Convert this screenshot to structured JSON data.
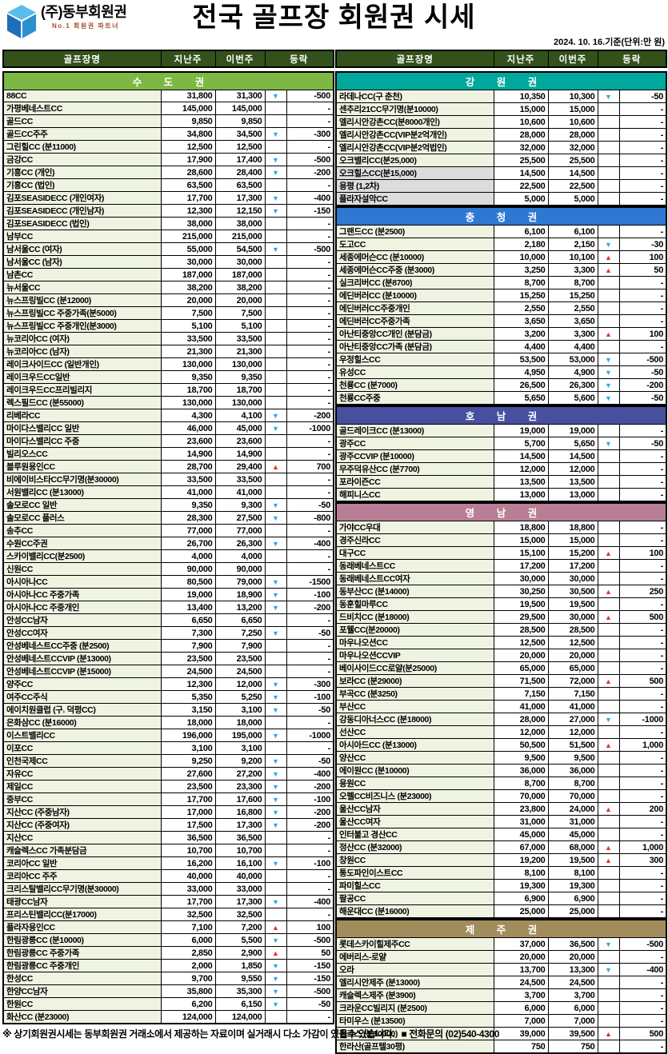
{
  "header": {
    "company": "(주)동부회원권",
    "tagline": "No.1 회원권 파트너",
    "logo_icon": "blue-cube-logo",
    "title": "전국 골프장 회원권 시세",
    "date_note": "2024. 10. 16.기준(단위:만 원)"
  },
  "columns_header": {
    "name": "골프장명",
    "last_week": "지난주",
    "this_week": "이번주",
    "change": "등락"
  },
  "colors": {
    "table_header_bg": "#33511a",
    "name_cell_bg": "#eef3e2",
    "gray_cell_bg": "#dcdcdc",
    "up_arrow": "#e63128",
    "down_arrow": "#29abe2"
  },
  "legend": {
    "up_symbol": "▲",
    "down_symbol": "▼"
  },
  "left_sections": [
    {
      "title": "수 도 권",
      "color": "#7cb843",
      "rows": [
        [
          "88CC",
          "31,800",
          "31,300",
          "down",
          "-500"
        ],
        [
          "가평베네스트CC",
          "145,000",
          "145,000",
          "",
          "-"
        ],
        [
          "골드CC",
          "9,850",
          "9,850",
          "",
          "-"
        ],
        [
          "골드CC주주",
          "34,800",
          "34,500",
          "down",
          "-300"
        ],
        [
          "그린힐CC (분11000)",
          "12,500",
          "12,500",
          "",
          "-"
        ],
        [
          "금강CC",
          "17,900",
          "17,400",
          "down",
          "-500"
        ],
        [
          "기흥CC (개인)",
          "28,600",
          "28,400",
          "down",
          "-200"
        ],
        [
          "기흥CC (법인)",
          "63,500",
          "63,500",
          "",
          "-"
        ],
        [
          "김포SEASIDECC (개인여자)",
          "17,700",
          "17,300",
          "down",
          "-400"
        ],
        [
          "김포SEASIDECC (개인남자)",
          "12,300",
          "12,150",
          "down",
          "-150"
        ],
        [
          "김포SEASIDECC (법인)",
          "38,000",
          "38,000",
          "",
          "-"
        ],
        [
          "남부CC",
          "215,000",
          "215,000",
          "",
          "-"
        ],
        [
          "남서울CC (여자)",
          "55,000",
          "54,500",
          "down",
          "-500"
        ],
        [
          "남서울CC (남자)",
          "30,000",
          "30,000",
          "",
          "-"
        ],
        [
          "남촌CC",
          "187,000",
          "187,000",
          "",
          "-"
        ],
        [
          "뉴서울CC",
          "38,200",
          "38,200",
          "",
          "-"
        ],
        [
          "뉴스프링빌CC (분12000)",
          "20,000",
          "20,000",
          "",
          "-"
        ],
        [
          "뉴스프링빌CC 주중가족(분5000)",
          "7,500",
          "7,500",
          "",
          "-"
        ],
        [
          "뉴스프링빌CC 주중개인(분3000)",
          "5,100",
          "5,100",
          "",
          "-"
        ],
        [
          "뉴코리아CC (여자)",
          "33,500",
          "33,500",
          "",
          "-"
        ],
        [
          "뉴코리아CC (남자)",
          "21,300",
          "21,300",
          "",
          "-"
        ],
        [
          "레이크사이드CC (일반개인)",
          "130,000",
          "130,000",
          "",
          "-"
        ],
        [
          "레이크우드CC일반",
          "9,350",
          "9,350",
          "",
          "-"
        ],
        [
          "레이크우드CC프리빌리지",
          "18,700",
          "18,700",
          "",
          "-"
        ],
        [
          "렉스필드CC (분55000)",
          "130,000",
          "130,000",
          "",
          "-"
        ],
        [
          "리베라CC",
          "4,300",
          "4,100",
          "down",
          "-200"
        ],
        [
          "마이다스밸리CC 일반",
          "46,000",
          "45,000",
          "down",
          "-1000"
        ],
        [
          "마이다스밸리CC 주중",
          "23,600",
          "23,600",
          "",
          "-"
        ],
        [
          "빌리오스CC",
          "14,900",
          "14,900",
          "",
          "-"
        ],
        [
          "블루원용인CC",
          "28,700",
          "29,400",
          "up",
          "700"
        ],
        [
          "비에이비스타CC무기명(분30000)",
          "33,500",
          "33,500",
          "",
          "-"
        ],
        [
          "서원밸리CC (분13000)",
          "41,000",
          "41,000",
          "",
          "-"
        ],
        [
          "솔모로CC 일반",
          "9,350",
          "9,300",
          "down",
          "-50"
        ],
        [
          "솔모로CC 플러스",
          "28,300",
          "27,500",
          "down",
          "-800"
        ],
        [
          "송추CC",
          "77,000",
          "77,000",
          "",
          "-"
        ],
        [
          "수원CC주권",
          "26,700",
          "26,300",
          "down",
          "-400"
        ],
        [
          "스카이밸리CC(분2500)",
          "4,000",
          "4,000",
          "",
          "-"
        ],
        [
          "신원CC",
          "90,000",
          "90,000",
          "",
          "-"
        ],
        [
          "아시아나CC",
          "80,500",
          "79,000",
          "down",
          "-1500"
        ],
        [
          "아시아나CC 주중가족",
          "19,000",
          "18,900",
          "down",
          "-100"
        ],
        [
          "아시아나CC 주중개인",
          "13,400",
          "13,200",
          "down",
          "-200"
        ],
        [
          "안성CC남자",
          "6,650",
          "6,650",
          "",
          "-"
        ],
        [
          "안성CC여자",
          "7,300",
          "7,250",
          "down",
          "-50"
        ],
        [
          "안성베네스트CC주중 (분2500)",
          "7,900",
          "7,900",
          "",
          "-"
        ],
        [
          "안성베네스트CCVIP (분13000)",
          "23,500",
          "23,500",
          "",
          "-"
        ],
        [
          "안성베네스트CCVIP (분15000)",
          "24,500",
          "24,500",
          "",
          "-"
        ],
        [
          "양주CC",
          "12,300",
          "12,000",
          "down",
          "-300"
        ],
        [
          "여주CC주식",
          "5,350",
          "5,250",
          "down",
          "-100"
        ],
        [
          "에이치원클럽 (구. 덕평CC)",
          "3,150",
          "3,100",
          "down",
          "-50"
        ],
        [
          "은화삼CC (분16000)",
          "18,000",
          "18,000",
          "",
          "-"
        ],
        [
          "이스트밸리CC",
          "196,000",
          "195,000",
          "down",
          "-1000"
        ],
        [
          "이포CC",
          "3,100",
          "3,100",
          "",
          "-"
        ],
        [
          "인천국제CC",
          "9,250",
          "9,200",
          "down",
          "-50"
        ],
        [
          "자유CC",
          "27,600",
          "27,200",
          "down",
          "-400"
        ],
        [
          "제일CC",
          "23,500",
          "23,300",
          "down",
          "-200"
        ],
        [
          "중부CC",
          "17,700",
          "17,600",
          "down",
          "-100"
        ],
        [
          "지산CC (주중남자)",
          "17,000",
          "16,800",
          "down",
          "-200"
        ],
        [
          "지산CC (주중여자)",
          "17,500",
          "17,300",
          "down",
          "-200"
        ],
        [
          "지산CC",
          "36,500",
          "36,500",
          "",
          "-"
        ],
        [
          "캐슬렉스CC 가족분담금",
          "10,700",
          "10,700",
          "",
          "-"
        ],
        [
          "코리아CC 일반",
          "16,200",
          "16,100",
          "down",
          "-100"
        ],
        [
          "코리아CC 주주",
          "40,000",
          "40,000",
          "",
          "-"
        ],
        [
          "크리스탈밸리CC무기명(분30000)",
          "33,000",
          "33,000",
          "",
          "-"
        ],
        [
          "태광CC남자",
          "17,700",
          "17,300",
          "down",
          "-400"
        ],
        [
          "프리스틴밸리CC(분17000)",
          "32,500",
          "32,500",
          "",
          "-"
        ],
        [
          "플라자용인CC",
          "7,100",
          "7,200",
          "up",
          "100"
        ],
        [
          "한림광릉CC (분10000)",
          "6,000",
          "5,500",
          "down",
          "-500"
        ],
        [
          "한림광릉CC 주중가족",
          "2,850",
          "2,900",
          "up",
          "50"
        ],
        [
          "한림광릉CC 주중개인",
          "2,000",
          "1,850",
          "down",
          "-150"
        ],
        [
          "한성CC",
          "9,700",
          "9,550",
          "down",
          "-150"
        ],
        [
          "한양CC남자",
          "35,800",
          "35,300",
          "down",
          "-500"
        ],
        [
          "한원CC",
          "6,200",
          "6,150",
          "down",
          "-50"
        ],
        [
          "화산CC (분23000)",
          "124,000",
          "124,000",
          "",
          "-"
        ]
      ]
    }
  ],
  "right_sections": [
    {
      "title": "강 원 권",
      "color": "#00a79d",
      "gray_rows": [
        6,
        7,
        8
      ],
      "rows": [
        [
          "라데나CC(구 춘천)",
          "10,350",
          "10,300",
          "down",
          "-50"
        ],
        [
          "센추리21CC무기명(분10000)",
          "15,000",
          "15,000",
          "",
          "-"
        ],
        [
          "엘리시안강촌CC(분8000개인)",
          "10,600",
          "10,600",
          "",
          "-"
        ],
        [
          "엘리시안강촌CC(VIP분2억개인)",
          "28,000",
          "28,000",
          "",
          "-"
        ],
        [
          "엘리시안강촌CC(VIP분2억법인)",
          "32,000",
          "32,000",
          "",
          "-"
        ],
        [
          "오크밸리CC(분25,000)",
          "25,500",
          "25,500",
          "",
          "-"
        ],
        [
          "오크힐스CC(분15,000)",
          "14,500",
          "14,500",
          "",
          "-"
        ],
        [
          "용평 (1,2차)",
          "22,500",
          "22,500",
          "",
          "-"
        ],
        [
          "플라자설악CC",
          "5,000",
          "5,000",
          "",
          "-"
        ]
      ]
    },
    {
      "title": "충 청 권",
      "color": "#2e78d2",
      "rows": [
        [
          "그랜드CC (분2500)",
          "6,100",
          "6,100",
          "",
          "-"
        ],
        [
          "도고CC",
          "2,180",
          "2,150",
          "down",
          "-30"
        ],
        [
          "세종에머슨CC (분10000)",
          "10,000",
          "10,100",
          "up",
          "100"
        ],
        [
          "세종에머슨CC주중 (분3000)",
          "3,250",
          "3,300",
          "up",
          "50"
        ],
        [
          "실크리버CC (분8700)",
          "8,700",
          "8,700",
          "",
          "-"
        ],
        [
          "에딘버러CC (분10000)",
          "15,250",
          "15,250",
          "",
          "-"
        ],
        [
          "에딘버러CC주중개인",
          "2,550",
          "2,550",
          "",
          "-"
        ],
        [
          "에딘버러CC주중가족",
          "3,650",
          "3,650",
          "",
          "-"
        ],
        [
          "아난티중앙CC개인 (분담금)",
          "3,200",
          "3,300",
          "up",
          "100"
        ],
        [
          "아난티중앙CC가족 (분담금)",
          "4,400",
          "4,400",
          "",
          "-"
        ],
        [
          "우정힐스CC",
          "53,500",
          "53,000",
          "down",
          "-500"
        ],
        [
          "유성CC",
          "4,950",
          "4,900",
          "down",
          "-50"
        ],
        [
          "천룡CC (분7000)",
          "26,500",
          "26,300",
          "down",
          "-200"
        ],
        [
          "천룡CC주중",
          "5,650",
          "5,600",
          "down",
          "-50"
        ]
      ]
    },
    {
      "title": "호 남 권",
      "color": "#474f9f",
      "rows": [
        [
          "골드레이크CC (분13000)",
          "19,000",
          "19,000",
          "",
          "-"
        ],
        [
          "광주CC",
          "5,700",
          "5,650",
          "down",
          "-50"
        ],
        [
          "광주CCVIP (분10000)",
          "14,500",
          "14,500",
          "",
          "-"
        ],
        [
          "무주덕유산CC (분7700)",
          "12,000",
          "12,000",
          "",
          "-"
        ],
        [
          "포라이즌CC",
          "13,500",
          "13,500",
          "",
          "-"
        ],
        [
          "해피니스CC",
          "13,000",
          "13,000",
          "",
          "-"
        ]
      ]
    },
    {
      "title": "영 남 권",
      "color": "#b87e95",
      "rows": [
        [
          "가야CC우대",
          "18,800",
          "18,800",
          "",
          "-"
        ],
        [
          "경주신라CC",
          "15,000",
          "15,000",
          "",
          "-"
        ],
        [
          "대구CC",
          "15,100",
          "15,200",
          "up",
          "100"
        ],
        [
          "동래베네스트CC",
          "17,200",
          "17,200",
          "",
          "-"
        ],
        [
          "동래베네스트CC여자",
          "30,000",
          "30,000",
          "",
          "-"
        ],
        [
          "동부산CC (분14000)",
          "30,250",
          "30,500",
          "up",
          "250"
        ],
        [
          "동훈힐마루CC",
          "19,500",
          "19,500",
          "",
          "-"
        ],
        [
          "드비치CC (분18000)",
          "29,500",
          "30,000",
          "up",
          "500"
        ],
        [
          "포웰CC(분20000)",
          "28,500",
          "28,500",
          "",
          "-"
        ],
        [
          "마우나오션CC",
          "12,500",
          "12,500",
          "",
          "-"
        ],
        [
          "마우나오션CCVIP",
          "20,000",
          "20,000",
          "",
          "-"
        ],
        [
          "베이사이드CC로얄(분25000)",
          "65,000",
          "65,000",
          "",
          "-"
        ],
        [
          "보라CC (분29000)",
          "71,500",
          "72,000",
          "up",
          "500"
        ],
        [
          "부곡CC (분3250)",
          "7,150",
          "7,150",
          "",
          "-"
        ],
        [
          "부산CC",
          "41,000",
          "41,000",
          "",
          "-"
        ],
        [
          "강동디아너스CC (분18000)",
          "28,000",
          "27,000",
          "down",
          "-1000"
        ],
        [
          "선산CC",
          "12,000",
          "12,000",
          "",
          "-"
        ],
        [
          "아시아드CC (분13000)",
          "50,500",
          "51,500",
          "up",
          "1,000"
        ],
        [
          "양산CC",
          "9,500",
          "9,500",
          "",
          "-"
        ],
        [
          "에이원CC (분10000)",
          "36,000",
          "36,000",
          "",
          "-"
        ],
        [
          "용원CC",
          "8,700",
          "8,700",
          "",
          "-"
        ],
        [
          "오펠CC비즈니스 (분23000)",
          "70,000",
          "70,000",
          "",
          "-"
        ],
        [
          "울산CC남자",
          "23,800",
          "24,000",
          "up",
          "200"
        ],
        [
          "울산CC여자",
          "31,000",
          "31,000",
          "",
          "-"
        ],
        [
          "인터불고 경산CC",
          "45,000",
          "45,000",
          "",
          "-"
        ],
        [
          "정산CC (분32000)",
          "67,000",
          "68,000",
          "up",
          "1,000"
        ],
        [
          "창원CC",
          "19,200",
          "19,500",
          "up",
          "300"
        ],
        [
          "통도파인이스트CC",
          "8,100",
          "8,100",
          "",
          "-"
        ],
        [
          "파미힐스CC",
          "19,300",
          "19,300",
          "",
          "-"
        ],
        [
          "팔공CC",
          "6,900",
          "6,900",
          "",
          "-"
        ],
        [
          "해운대CC (분16000)",
          "25,000",
          "25,000",
          "",
          "-"
        ]
      ]
    },
    {
      "title": "제 주 권",
      "color": "#a38c5c",
      "rows": [
        [
          "롯데스카이힐제주CC",
          "37,000",
          "36,500",
          "down",
          "-500"
        ],
        [
          "에버리스-로얄",
          "20,000",
          "20,000",
          "",
          "-"
        ],
        [
          "오라",
          "13,700",
          "13,300",
          "down",
          "-400"
        ],
        [
          "엘리시안제주 (분13000)",
          "24,500",
          "24,500",
          "",
          "-"
        ],
        [
          "캐슬렉스제주 (분3900)",
          "3,700",
          "3,700",
          "",
          "-"
        ],
        [
          "크라운CC빌리지 (분2500)",
          "6,000",
          "6,000",
          "",
          "-"
        ],
        [
          "타미우스 (분13500)",
          "7,000",
          "7,000",
          "",
          "-"
        ],
        [
          "핀크스 (분10000)",
          "39,000",
          "39,500",
          "up",
          "500"
        ],
        [
          "한라산(골프텔30평)",
          "750",
          "750",
          "",
          "-"
        ]
      ]
    }
  ],
  "footer": {
    "note": "※ 상기회원권시세는 동부회원권 거래소에서 제공하는 자료이며 실거래시 다소 가감이 있을수 있습니다.",
    "phone": "■ 전화문의 (02)540-4300"
  }
}
